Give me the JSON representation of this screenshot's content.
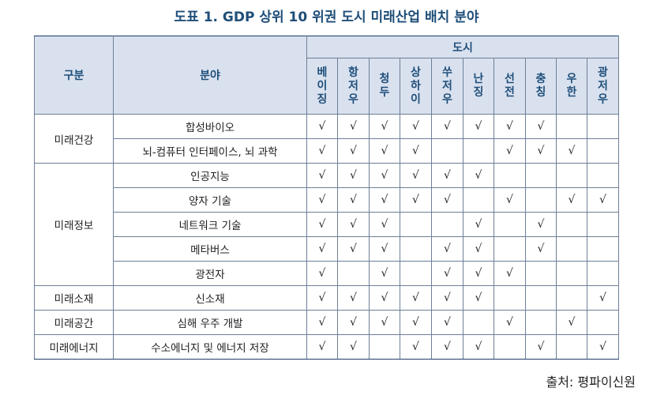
{
  "title": "도표 1. GDP 상위 10 위권 도시 미래산업 배치 분야",
  "headers": {
    "category": "구분",
    "field": "분야",
    "cities_group": "도시"
  },
  "cities": [
    "베이징",
    "항저우",
    "청두",
    "상하이",
    "쑤저우",
    "난징",
    "선전",
    "충칭",
    "우한",
    "광저우"
  ],
  "check_mark": "√",
  "groups": [
    {
      "category": "미래건강",
      "rows": [
        {
          "field": "합성바이오",
          "checks": [
            1,
            1,
            1,
            1,
            1,
            1,
            1,
            1,
            0,
            0
          ]
        },
        {
          "field": "뇌-컴퓨터 인터페이스, 뇌 과학",
          "checks": [
            1,
            1,
            1,
            1,
            0,
            0,
            1,
            1,
            1,
            0
          ]
        }
      ]
    },
    {
      "category": "미래정보",
      "rows": [
        {
          "field": "인공지능",
          "checks": [
            1,
            1,
            1,
            1,
            1,
            1,
            0,
            0,
            0,
            0
          ]
        },
        {
          "field": "양자 기술",
          "checks": [
            1,
            1,
            1,
            1,
            1,
            0,
            1,
            0,
            1,
            1
          ]
        },
        {
          "field": "네트워크 기술",
          "checks": [
            1,
            1,
            1,
            0,
            0,
            1,
            0,
            1,
            0,
            0
          ]
        },
        {
          "field": "메타버스",
          "checks": [
            1,
            1,
            1,
            0,
            1,
            1,
            0,
            1,
            0,
            0
          ]
        },
        {
          "field": "광전자",
          "checks": [
            1,
            0,
            1,
            0,
            1,
            1,
            1,
            0,
            0,
            0
          ]
        }
      ]
    },
    {
      "category": "미래소재",
      "rows": [
        {
          "field": "신소재",
          "checks": [
            1,
            1,
            1,
            1,
            1,
            1,
            0,
            0,
            0,
            1
          ]
        }
      ]
    },
    {
      "category": "미래공간",
      "rows": [
        {
          "field": "심해 우주 개발",
          "checks": [
            1,
            1,
            1,
            1,
            1,
            0,
            1,
            0,
            1,
            0
          ]
        }
      ]
    },
    {
      "category": "미래에너지",
      "rows": [
        {
          "field": "수소에너지 및 에너지 저장",
          "checks": [
            1,
            1,
            0,
            1,
            1,
            1,
            0,
            1,
            0,
            1
          ]
        }
      ]
    }
  ],
  "source": "출처: 평파이신원"
}
